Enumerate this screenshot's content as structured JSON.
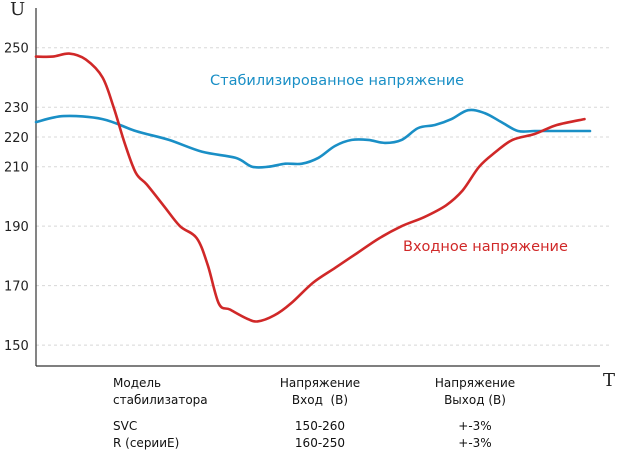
{
  "chart_data": {
    "type": "line",
    "x_axis_label": "T",
    "y_axis_label": "U",
    "ylim": [
      143,
      262
    ],
    "xlim": [
      0,
      100
    ],
    "y_ticks": [
      250,
      230,
      220,
      210,
      190,
      170,
      150
    ],
    "grid": "dashed horizontal",
    "series": [
      {
        "name": "Стабилизированное напряжение",
        "color": "#1a8fc6",
        "x": [
          0,
          5,
          12,
          18,
          24,
          30,
          36,
          39,
          42,
          45,
          48,
          51,
          54,
          57,
          60,
          63,
          66,
          69,
          72,
          75,
          78,
          81,
          84,
          87,
          90,
          94,
          100
        ],
        "y": [
          225,
          227,
          226,
          222,
          219,
          215,
          213,
          210,
          210,
          211,
          211,
          213,
          217,
          219,
          219,
          218,
          219,
          223,
          224,
          226,
          229,
          228,
          225,
          222,
          222,
          222,
          222
        ]
      },
      {
        "name": "Входное напряжение",
        "color": "#d02828",
        "x": [
          0,
          3,
          6,
          9,
          12,
          14,
          16,
          18,
          20,
          23,
          26,
          29,
          31,
          33,
          35,
          38,
          40,
          43,
          46,
          50,
          54,
          58,
          62,
          66,
          70,
          74,
          77,
          80,
          83,
          86,
          90,
          94,
          99
        ],
        "y": [
          247,
          247,
          248,
          246,
          240,
          230,
          218,
          208,
          204,
          197,
          190,
          186,
          177,
          164,
          162,
          159,
          158,
          160,
          164,
          171,
          176,
          181,
          186,
          190,
          193,
          197,
          202,
          210,
          215,
          219,
          221,
          224,
          226
        ]
      }
    ]
  },
  "annotations": {
    "stabilized": "Стабилизированное напряжение",
    "input": "Входное напряжение"
  },
  "spec_table": {
    "headers": [
      [
        "Модель",
        "стабилизатора"
      ],
      [
        "Напряжение",
        "Вход  (В)"
      ],
      [
        "Напряжение",
        "Выход (В)"
      ]
    ],
    "rows": [
      [
        "SVC",
        "150-260",
        "+-3%"
      ],
      [
        "R (серииE)",
        "160-250",
        "+-3%"
      ]
    ]
  }
}
